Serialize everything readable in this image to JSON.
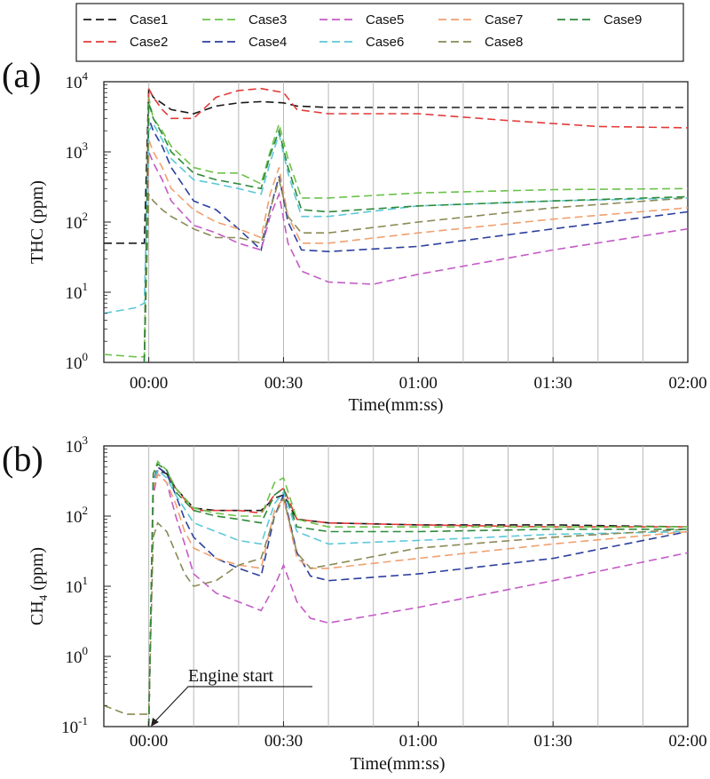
{
  "legend": {
    "entries": [
      {
        "name": "Case1",
        "color": "#1a1a1a"
      },
      {
        "name": "Case2",
        "color": "#e23a3a"
      },
      {
        "name": "Case3",
        "color": "#6cc24a"
      },
      {
        "name": "Case4",
        "color": "#2b3f9e"
      },
      {
        "name": "Case5",
        "color": "#c45ac6"
      },
      {
        "name": "Case6",
        "color": "#5cc8d8"
      },
      {
        "name": "Case7",
        "color": "#f0a070"
      },
      {
        "name": "Case8",
        "color": "#8a8a55"
      },
      {
        "name": "Case9",
        "color": "#2f8a3a"
      }
    ]
  },
  "chart_data": [
    {
      "type": "line",
      "panel_label": "(a)",
      "title": "",
      "xlabel": "Time(mm:ss)",
      "ylabel": "THC (ppm)",
      "yscale": "log",
      "xlim": [
        -10,
        120
      ],
      "ylim": [
        1,
        10000
      ],
      "x_ticks": [
        {
          "value": 0,
          "label": "00:00"
        },
        {
          "value": 30,
          "label": "00:30"
        },
        {
          "value": 60,
          "label": "01:00"
        },
        {
          "value": 90,
          "label": "01:30"
        },
        {
          "value": 120,
          "label": "02:00"
        }
      ],
      "y_ticks": [
        {
          "value": 1,
          "base": "10",
          "exp": "0"
        },
        {
          "value": 10,
          "base": "10",
          "exp": "1"
        },
        {
          "value": 100,
          "base": "10",
          "exp": "2"
        },
        {
          "value": 1000,
          "base": "10",
          "exp": "3"
        },
        {
          "value": 10000,
          "base": "10",
          "exp": "4"
        }
      ],
      "grid_x": [
        0,
        10,
        20,
        30,
        40,
        50,
        60,
        70,
        80,
        90,
        100,
        110
      ],
      "series": [
        {
          "name": "Case1",
          "x": [
            -10,
            -3,
            -1,
            0,
            1,
            5,
            10,
            15,
            20,
            25,
            30,
            33,
            40,
            60,
            90,
            120
          ],
          "y": [
            50,
            50,
            50,
            8000,
            6000,
            4000,
            3500,
            4500,
            5000,
            5200,
            5000,
            4500,
            4300,
            4300,
            4300,
            4300
          ]
        },
        {
          "name": "Case2",
          "x": [
            -1,
            0,
            1,
            3,
            5,
            10,
            15,
            20,
            25,
            30,
            33,
            40,
            60,
            80,
            100,
            120
          ],
          "y": [
            1,
            8000,
            6000,
            4000,
            3000,
            3000,
            6000,
            7500,
            8000,
            7000,
            4000,
            3500,
            3500,
            2800,
            2300,
            2200
          ]
        },
        {
          "name": "Case3",
          "x": [
            -10,
            -3,
            -1,
            0,
            1,
            3,
            5,
            10,
            15,
            20,
            25,
            27,
            29,
            31,
            34,
            40,
            60,
            90,
            120
          ],
          "y": [
            1.3,
            1.2,
            1.2,
            6000,
            3000,
            2000,
            1200,
            600,
            500,
            500,
            350,
            1000,
            2500,
            800,
            220,
            220,
            260,
            290,
            300
          ]
        },
        {
          "name": "Case4",
          "x": [
            -1,
            0,
            1,
            3,
            5,
            10,
            15,
            20,
            25,
            27,
            29,
            31,
            34,
            40,
            60,
            90,
            120
          ],
          "y": [
            1,
            3000,
            2000,
            1200,
            600,
            200,
            150,
            80,
            40,
            150,
            450,
            100,
            40,
            38,
            45,
            80,
            140
          ]
        },
        {
          "name": "Case5",
          "x": [
            -1,
            0,
            1,
            3,
            5,
            10,
            15,
            20,
            25,
            27,
            29,
            31,
            34,
            40,
            50,
            60,
            90,
            120
          ],
          "y": [
            1,
            1000,
            700,
            400,
            200,
            90,
            70,
            50,
            40,
            120,
            250,
            50,
            20,
            14,
            13,
            18,
            40,
            80
          ]
        },
        {
          "name": "Case6",
          "x": [
            -10,
            -3,
            -1,
            0,
            1,
            3,
            5,
            10,
            15,
            20,
            25,
            27,
            29,
            31,
            34,
            40,
            60,
            90,
            120
          ],
          "y": [
            5,
            6,
            7,
            2000,
            2500,
            1500,
            800,
            400,
            350,
            300,
            250,
            700,
            1800,
            500,
            120,
            120,
            170,
            200,
            220
          ]
        },
        {
          "name": "Case7",
          "x": [
            -1,
            0,
            1,
            3,
            5,
            10,
            15,
            20,
            25,
            27,
            29,
            31,
            34,
            40,
            60,
            90,
            120
          ],
          "y": [
            1,
            1500,
            1000,
            600,
            300,
            150,
            100,
            80,
            60,
            250,
            600,
            120,
            50,
            50,
            70,
            110,
            160
          ]
        },
        {
          "name": "Case8",
          "x": [
            -1,
            0,
            1,
            3,
            5,
            10,
            15,
            20,
            25,
            27,
            29,
            31,
            34,
            40,
            60,
            90,
            120
          ],
          "y": [
            1,
            250,
            200,
            150,
            120,
            80,
            60,
            60,
            50,
            150,
            400,
            120,
            70,
            70,
            100,
            160,
            220
          ]
        },
        {
          "name": "Case9",
          "x": [
            -1,
            0,
            1,
            3,
            5,
            10,
            15,
            20,
            25,
            27,
            29,
            31,
            34,
            40,
            60,
            90,
            120
          ],
          "y": [
            1,
            5000,
            3000,
            1800,
            1000,
            500,
            400,
            350,
            300,
            900,
            2000,
            600,
            150,
            140,
            170,
            200,
            230
          ]
        }
      ]
    },
    {
      "type": "line",
      "panel_label": "(b)",
      "title": "",
      "xlabel": "Time(mm:ss)",
      "ylabel": "CH",
      "ylabel_sub": "4",
      "ylabel_unit": " (ppm)",
      "yscale": "log",
      "xlim": [
        -10,
        120
      ],
      "ylim": [
        0.1,
        1000
      ],
      "x_ticks": [
        {
          "value": 0,
          "label": "00:00"
        },
        {
          "value": 30,
          "label": "00:30"
        },
        {
          "value": 60,
          "label": "01:00"
        },
        {
          "value": 90,
          "label": "01:30"
        },
        {
          "value": 120,
          "label": "02:00"
        }
      ],
      "y_ticks": [
        {
          "value": 0.1,
          "base": "10",
          "exp": "-1"
        },
        {
          "value": 1,
          "base": "10",
          "exp": "0"
        },
        {
          "value": 10,
          "base": "10",
          "exp": "1"
        },
        {
          "value": 100,
          "base": "10",
          "exp": "2"
        },
        {
          "value": 1000,
          "base": "10",
          "exp": "3"
        }
      ],
      "grid_x": [
        0,
        10,
        20,
        30,
        40,
        50,
        60,
        70,
        80,
        90,
        100,
        110
      ],
      "annotation": {
        "text": "Engine start",
        "x": 0,
        "y": 0.1
      },
      "series": [
        {
          "name": "Case1",
          "x": [
            0,
            1,
            2,
            4,
            6,
            10,
            15,
            20,
            25,
            28,
            30,
            33,
            40,
            60,
            90,
            120
          ],
          "y": [
            0.1,
            200,
            450,
            400,
            250,
            130,
            120,
            120,
            120,
            180,
            200,
            90,
            80,
            75,
            75,
            70
          ]
        },
        {
          "name": "Case2",
          "x": [
            0,
            1,
            2,
            4,
            6,
            10,
            15,
            20,
            25,
            28,
            30,
            33,
            40,
            60,
            90,
            120
          ],
          "y": [
            0.1,
            300,
            500,
            400,
            250,
            120,
            120,
            120,
            110,
            200,
            250,
            90,
            80,
            75,
            70,
            70
          ]
        },
        {
          "name": "Case3",
          "x": [
            0,
            1,
            2,
            4,
            6,
            10,
            15,
            20,
            25,
            28,
            30,
            33,
            40,
            60,
            90,
            120
          ],
          "y": [
            0.1,
            400,
            600,
            450,
            250,
            130,
            110,
            100,
            100,
            300,
            350,
            90,
            70,
            70,
            70,
            70
          ]
        },
        {
          "name": "Case4",
          "x": [
            0,
            1,
            2,
            4,
            6,
            8,
            10,
            15,
            20,
            25,
            28,
            30,
            33,
            36,
            40,
            60,
            90,
            120
          ],
          "y": [
            0.1,
            300,
            500,
            400,
            200,
            90,
            50,
            25,
            18,
            14,
            100,
            200,
            30,
            14,
            12,
            15,
            25,
            60
          ]
        },
        {
          "name": "Case5",
          "x": [
            0,
            1,
            2,
            4,
            6,
            8,
            10,
            15,
            20,
            25,
            28,
            30,
            33,
            36,
            40,
            60,
            90,
            120
          ],
          "y": [
            0.1,
            200,
            400,
            300,
            100,
            40,
            15,
            8,
            6,
            4.5,
            10,
            20,
            6,
            3.5,
            3,
            5,
            12,
            30
          ]
        },
        {
          "name": "Case6",
          "x": [
            0,
            1,
            2,
            4,
            6,
            10,
            15,
            20,
            25,
            28,
            30,
            33,
            40,
            60,
            90,
            120
          ],
          "y": [
            0.1,
            300,
            450,
            350,
            200,
            80,
            60,
            45,
            40,
            150,
            220,
            60,
            40,
            45,
            55,
            60
          ]
        },
        {
          "name": "Case7",
          "x": [
            0,
            1,
            2,
            4,
            6,
            8,
            10,
            15,
            20,
            25,
            28,
            30,
            33,
            36,
            40,
            60,
            90,
            120
          ],
          "y": [
            0.1,
            250,
            400,
            300,
            150,
            60,
            35,
            25,
            20,
            18,
            120,
            180,
            25,
            18,
            18,
            25,
            40,
            60
          ]
        },
        {
          "name": "Case8",
          "x": [
            -10,
            -5,
            0,
            1,
            2,
            4,
            6,
            8,
            10,
            15,
            20,
            25,
            28,
            30,
            33,
            36,
            40,
            60,
            90,
            120
          ],
          "y": [
            0.2,
            0.15,
            0.15,
            50,
            80,
            60,
            30,
            15,
            10,
            12,
            20,
            25,
            100,
            180,
            30,
            18,
            20,
            35,
            50,
            65
          ]
        },
        {
          "name": "Case9",
          "x": [
            0,
            1,
            2,
            4,
            6,
            10,
            15,
            20,
            25,
            28,
            30,
            33,
            40,
            60,
            90,
            120
          ],
          "y": [
            0.1,
            400,
            550,
            450,
            220,
            120,
            100,
            90,
            80,
            200,
            250,
            70,
            60,
            60,
            65,
            65
          ]
        }
      ]
    }
  ]
}
